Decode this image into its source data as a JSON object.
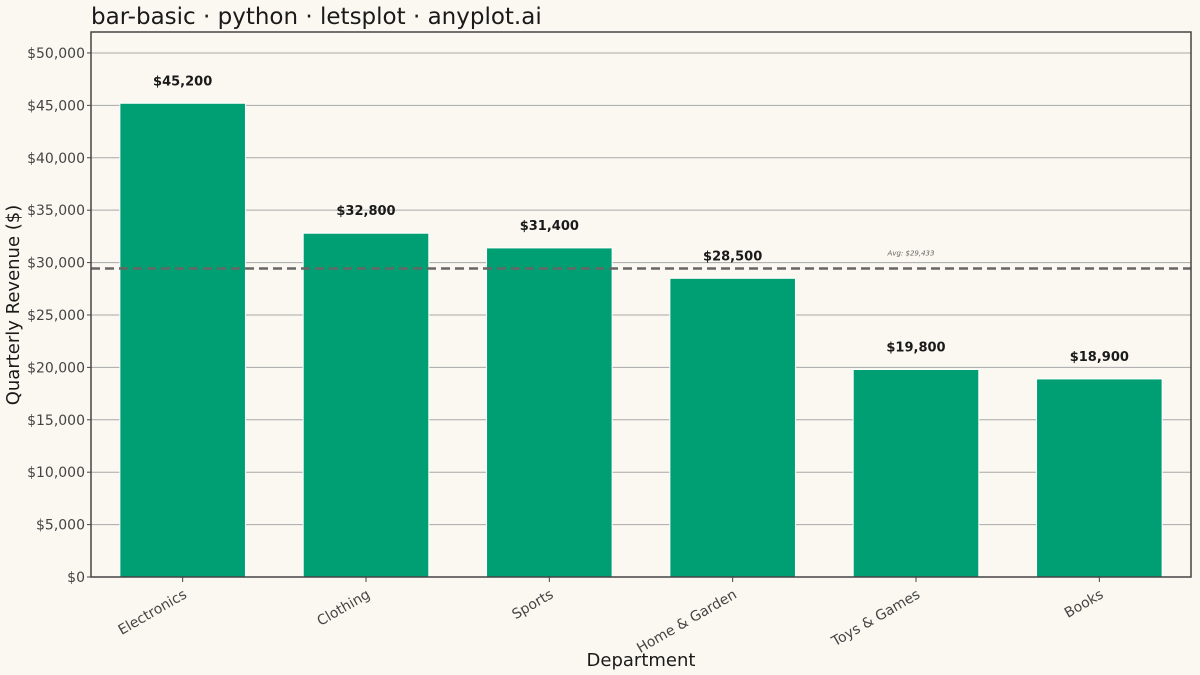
{
  "chart_data": {
    "type": "bar",
    "title": "bar-basic · python · letsplot · anyplot.ai",
    "xlabel": "Department",
    "ylabel": "Quarterly Revenue ($)",
    "categories": [
      "Electronics",
      "Clothing",
      "Sports",
      "Home & Garden",
      "Toys & Games",
      "Books"
    ],
    "values": [
      45200,
      32800,
      31400,
      28500,
      19800,
      18900
    ],
    "data_labels": [
      "$45,200",
      "$32,800",
      "$31,400",
      "$28,500",
      "$19,800",
      "$18,900"
    ],
    "ylim": [
      0,
      52000
    ],
    "y_ticks": [
      0,
      5000,
      10000,
      15000,
      20000,
      25000,
      30000,
      35000,
      40000,
      45000,
      50000
    ],
    "y_tick_labels": [
      "$0",
      "$5,000",
      "$10,000",
      "$15,000",
      "$20,000",
      "$25,000",
      "$30,000",
      "$35,000",
      "$40,000",
      "$45,000",
      "$50,000"
    ],
    "reference_line": {
      "value": 29433,
      "label": "Avg: $29,433"
    },
    "grid": true,
    "colors": {
      "bar": "#009E73",
      "background": "#FAF8F1",
      "grid": "#A8A8A8",
      "reference_line": "#666666"
    }
  }
}
